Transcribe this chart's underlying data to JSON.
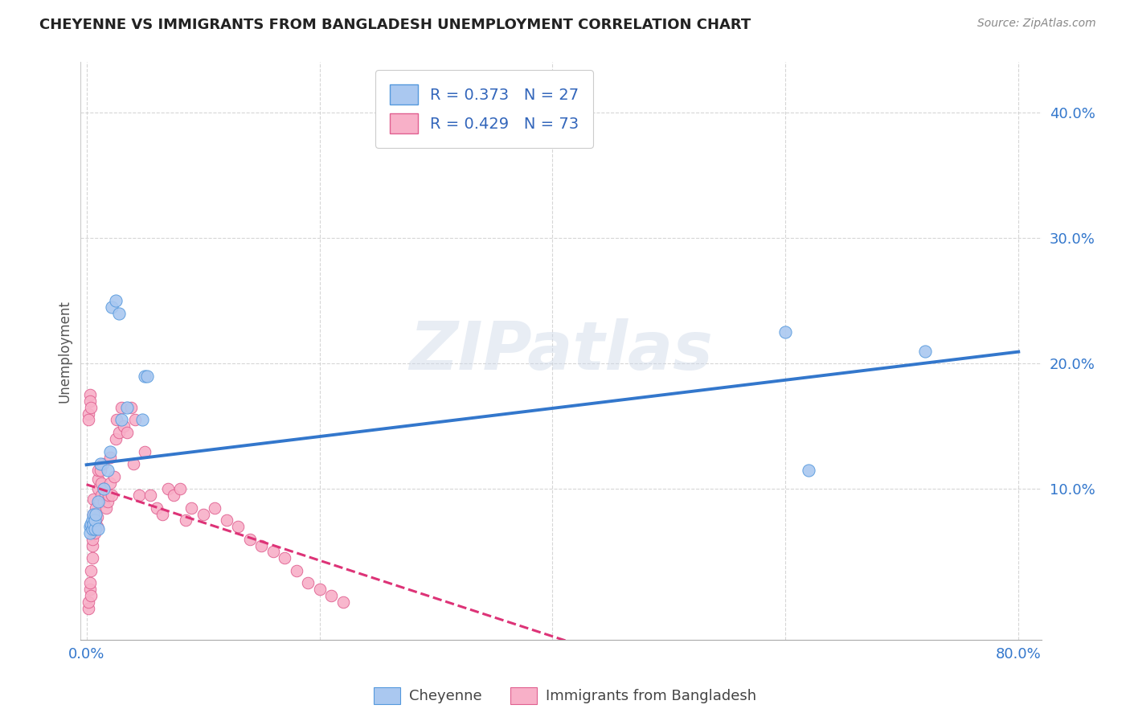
{
  "title": "CHEYENNE VS IMMIGRANTS FROM BANGLADESH UNEMPLOYMENT CORRELATION CHART",
  "source": "Source: ZipAtlas.com",
  "ylabel": "Unemployment",
  "xlim": [
    -0.005,
    0.82
  ],
  "ylim": [
    -0.02,
    0.44
  ],
  "cheyenne_color": "#aac8f0",
  "cheyenne_edge_color": "#5599dd",
  "bangladesh_color": "#f8b0c8",
  "bangladesh_edge_color": "#e06090",
  "cheyenne_line_color": "#3377cc",
  "bangladesh_line_color": "#dd3377",
  "legend_r1": "R = 0.373",
  "legend_n1": "N = 27",
  "legend_r2": "R = 0.429",
  "legend_n2": "N = 73",
  "cheyenne_label": "Cheyenne",
  "bangladesh_label": "Immigrants from Bangladesh",
  "watermark": "ZIPatlas",
  "background_color": "#ffffff",
  "cheyenne_x": [
    0.003,
    0.003,
    0.004,
    0.005,
    0.005,
    0.006,
    0.006,
    0.007,
    0.007,
    0.008,
    0.01,
    0.01,
    0.012,
    0.015,
    0.018,
    0.02,
    0.022,
    0.025,
    0.028,
    0.03,
    0.035,
    0.048,
    0.05,
    0.052,
    0.6,
    0.62,
    0.72
  ],
  "cheyenne_y": [
    0.07,
    0.065,
    0.072,
    0.068,
    0.075,
    0.08,
    0.072,
    0.068,
    0.075,
    0.08,
    0.068,
    0.09,
    0.12,
    0.1,
    0.115,
    0.13,
    0.245,
    0.25,
    0.24,
    0.155,
    0.165,
    0.155,
    0.19,
    0.19,
    0.225,
    0.115,
    0.21
  ],
  "bangladesh_x": [
    0.002,
    0.002,
    0.003,
    0.003,
    0.004,
    0.004,
    0.005,
    0.005,
    0.005,
    0.006,
    0.006,
    0.006,
    0.007,
    0.007,
    0.008,
    0.008,
    0.009,
    0.009,
    0.01,
    0.01,
    0.01,
    0.011,
    0.012,
    0.013,
    0.013,
    0.014,
    0.015,
    0.015,
    0.016,
    0.017,
    0.018,
    0.019,
    0.02,
    0.02,
    0.022,
    0.024,
    0.025,
    0.026,
    0.028,
    0.03,
    0.032,
    0.035,
    0.038,
    0.04,
    0.042,
    0.045,
    0.05,
    0.055,
    0.06,
    0.065,
    0.07,
    0.075,
    0.08,
    0.085,
    0.09,
    0.1,
    0.11,
    0.12,
    0.13,
    0.14,
    0.15,
    0.16,
    0.17,
    0.18,
    0.19,
    0.2,
    0.21,
    0.22,
    0.002,
    0.002,
    0.003,
    0.003,
    0.004
  ],
  "bangladesh_y": [
    0.005,
    0.01,
    0.02,
    0.025,
    0.035,
    0.015,
    0.045,
    0.055,
    0.06,
    0.068,
    0.08,
    0.092,
    0.072,
    0.065,
    0.075,
    0.085,
    0.078,
    0.07,
    0.1,
    0.108,
    0.115,
    0.09,
    0.115,
    0.095,
    0.105,
    0.12,
    0.09,
    0.1,
    0.095,
    0.085,
    0.09,
    0.095,
    0.105,
    0.125,
    0.095,
    0.11,
    0.14,
    0.155,
    0.145,
    0.165,
    0.15,
    0.145,
    0.165,
    0.12,
    0.155,
    0.095,
    0.13,
    0.095,
    0.085,
    0.08,
    0.1,
    0.095,
    0.1,
    0.075,
    0.085,
    0.08,
    0.085,
    0.075,
    0.07,
    0.06,
    0.055,
    0.05,
    0.045,
    0.035,
    0.025,
    0.02,
    0.015,
    0.01,
    0.16,
    0.155,
    0.175,
    0.17,
    0.165
  ]
}
